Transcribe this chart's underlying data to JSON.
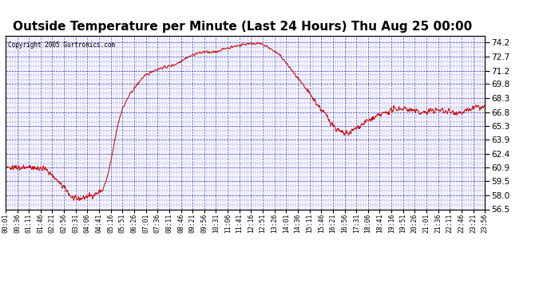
{
  "title": "Outside Temperature per Minute (Last 24 Hours) Thu Aug 25 00:00",
  "copyright": "Copyright 2005 Gurtronics.com",
  "ylabel_right_ticks": [
    74.2,
    72.7,
    71.2,
    69.8,
    68.3,
    66.8,
    65.3,
    63.9,
    62.4,
    60.9,
    59.5,
    58.0,
    56.5
  ],
  "ymin": 56.5,
  "ymax": 74.9,
  "line_color": "#cc0000",
  "background_color": "#ffffff",
  "plot_bg_color": "#ffffff",
  "grid_color": "#0000bb",
  "title_fontsize": 11,
  "title_fontweight": "bold",
  "x_tick_labels": [
    "00:01",
    "00:36",
    "01:11",
    "01:46",
    "02:21",
    "02:56",
    "03:31",
    "04:06",
    "04:41",
    "05:16",
    "05:51",
    "06:26",
    "07:01",
    "07:36",
    "08:11",
    "08:46",
    "09:21",
    "09:56",
    "10:31",
    "11:06",
    "11:41",
    "12:16",
    "12:51",
    "13:26",
    "14:01",
    "14:36",
    "15:11",
    "15:46",
    "16:21",
    "16:56",
    "17:31",
    "18:06",
    "18:41",
    "19:16",
    "19:51",
    "20:26",
    "21:01",
    "21:36",
    "22:11",
    "22:46",
    "23:21",
    "23:56"
  ],
  "temp_data": [
    60.9,
    60.8,
    61.0,
    60.7,
    61.1,
    60.9,
    61.3,
    61.0,
    60.8,
    61.2,
    61.0,
    60.7,
    61.3,
    61.1,
    60.9,
    61.2,
    60.8,
    61.0,
    61.2,
    60.9,
    60.7,
    61.1,
    60.8,
    61.0,
    60.9,
    61.1,
    60.7,
    61.0,
    60.8,
    61.2,
    60.9,
    60.7,
    61.1,
    60.8,
    61.0,
    61.2,
    60.8,
    61.0,
    60.9,
    60.7,
    61.1,
    60.9,
    60.7,
    61.0,
    60.8,
    61.1,
    60.9,
    60.7,
    61.0,
    60.8,
    60.6,
    60.9,
    60.7,
    61.0,
    60.8,
    60.6,
    60.9,
    60.7,
    60.5,
    60.7,
    60.5,
    60.3,
    60.5,
    60.3,
    60.1,
    60.3,
    60.1,
    59.9,
    60.0,
    59.8,
    59.6,
    59.8,
    59.6,
    59.4,
    59.5,
    59.3,
    59.2,
    59.0,
    59.2,
    59.0,
    58.8,
    59.0,
    58.8,
    58.6,
    58.7,
    58.5,
    58.3,
    58.5,
    58.3,
    58.1,
    58.0,
    57.9,
    57.8,
    57.8,
    57.7,
    57.6,
    57.6,
    57.5,
    57.5,
    57.6,
    57.5,
    57.6,
    57.7,
    57.6,
    57.7,
    57.6,
    57.7,
    57.6,
    57.8,
    57.7,
    57.8,
    57.7,
    57.8,
    57.9,
    57.8,
    57.9,
    57.8,
    57.9,
    58.0,
    57.9,
    58.0,
    57.9,
    58.0,
    58.1,
    58.0,
    58.1,
    58.2,
    58.1,
    58.2,
    58.3,
    58.2,
    58.4,
    58.3,
    58.5,
    58.4,
    58.6,
    58.5,
    58.7,
    58.9,
    59.1,
    59.3,
    59.5,
    59.8,
    60.1,
    60.4,
    60.7,
    61.1,
    61.4,
    61.8,
    62.2,
    62.6,
    63.0,
    63.4,
    63.8,
    64.2,
    64.6,
    65.0,
    65.4,
    65.7,
    66.0,
    66.3,
    66.6,
    66.8,
    67.0,
    67.2,
    67.4,
    67.5,
    67.6,
    67.8,
    68.0,
    68.1,
    68.3,
    68.4,
    68.5,
    68.7,
    68.8,
    68.9,
    69.0,
    69.1,
    69.2,
    69.3,
    69.4,
    69.5,
    69.6,
    69.7,
    69.8,
    69.9,
    70.0,
    70.1,
    70.2,
    70.3,
    70.4,
    70.5,
    70.5,
    70.6,
    70.6,
    70.7,
    70.7,
    70.8,
    70.8,
    70.9,
    70.9,
    71.0,
    71.0,
    71.1,
    71.1,
    71.2,
    71.2,
    71.2,
    71.3,
    71.3,
    71.3,
    71.3,
    71.4,
    71.4,
    71.4,
    71.4,
    71.5,
    71.5,
    71.5,
    71.5,
    71.5,
    71.6,
    71.6,
    71.6,
    71.6,
    71.6,
    71.6,
    71.7,
    71.7,
    71.7,
    71.7,
    71.7,
    71.8,
    71.8,
    71.8,
    71.8,
    71.9,
    71.9,
    71.9,
    72.0,
    72.0,
    72.1,
    72.1,
    72.2,
    72.2,
    72.3,
    72.3,
    72.4,
    72.4,
    72.4,
    72.5,
    72.5,
    72.6,
    72.6,
    72.6,
    72.7,
    72.7,
    72.7,
    72.8,
    72.8,
    72.8,
    72.9,
    72.9,
    72.9,
    73.0,
    73.0,
    73.0,
    73.0,
    73.1,
    73.1,
    73.1,
    73.1,
    73.1,
    73.1,
    73.1,
    73.2,
    73.2,
    73.2,
    73.2,
    73.2,
    73.2,
    73.2,
    73.2,
    73.2,
    73.1,
    73.1,
    73.1,
    73.1,
    73.1,
    73.1,
    73.2,
    73.2,
    73.2,
    73.2,
    73.2,
    73.3,
    73.3,
    73.3,
    73.3,
    73.4,
    73.4,
    73.4,
    73.4,
    73.5,
    73.5,
    73.5,
    73.5,
    73.6,
    73.6,
    73.6,
    73.6,
    73.6,
    73.6,
    73.7,
    73.7,
    73.7,
    73.7,
    73.7,
    73.8,
    73.8,
    73.8,
    73.8,
    73.8,
    73.8,
    73.9,
    73.9,
    73.9,
    73.9,
    73.9,
    73.9,
    74.0,
    74.0,
    74.0,
    74.0,
    74.0,
    74.0,
    74.0,
    74.1,
    74.1,
    74.1,
    74.1,
    74.1,
    74.1,
    74.1,
    74.1,
    74.1,
    74.1,
    74.1,
    74.1,
    74.1,
    74.1,
    74.1,
    74.1,
    74.1,
    74.1,
    74.0,
    74.0,
    74.0,
    74.0,
    74.0,
    73.9,
    73.9,
    73.9,
    73.8,
    73.8,
    73.8,
    73.7,
    73.7,
    73.6,
    73.6,
    73.5,
    73.5,
    73.4,
    73.4,
    73.3,
    73.3,
    73.2,
    73.2,
    73.1,
    73.1,
    73.0,
    72.9,
    72.9,
    72.8,
    72.8,
    72.7,
    72.6,
    72.5,
    72.4,
    72.3,
    72.2,
    72.1,
    72.0,
    71.9,
    71.8,
    71.7,
    71.6,
    71.5,
    71.4,
    71.3,
    71.2,
    71.1,
    71.0,
    70.9,
    70.8,
    70.7,
    70.6,
    70.5,
    70.4,
    70.3,
    70.2,
    70.1,
    70.0,
    69.9,
    69.8,
    69.7,
    69.6,
    69.5,
    69.4,
    69.3,
    69.2,
    69.1,
    69.0,
    68.9,
    68.8,
    68.7,
    68.6,
    68.5,
    68.4,
    68.3,
    68.2,
    68.1,
    68.0,
    67.9,
    67.8,
    67.7,
    67.6,
    67.5,
    67.4,
    67.3,
    67.2,
    67.1,
    67.0,
    66.9,
    66.8,
    66.7,
    66.6,
    66.5,
    66.4,
    66.3,
    66.2,
    66.1,
    66.0,
    65.9,
    65.8,
    65.7,
    65.6,
    65.5,
    65.4,
    65.3,
    65.2,
    65.1,
    65.0,
    64.9,
    64.9,
    64.8,
    64.8,
    64.7,
    64.7,
    64.6,
    64.6,
    64.5,
    64.5,
    64.5,
    64.5,
    64.5,
    64.5,
    64.5,
    64.5,
    64.6,
    64.6,
    64.6,
    64.7,
    64.7,
    64.8,
    64.8,
    64.9,
    64.9,
    65.0,
    65.0,
    65.1,
    65.2,
    65.2,
    65.3,
    65.3,
    65.4,
    65.4,
    65.5,
    65.5,
    65.6,
    65.6,
    65.7,
    65.7,
    65.8,
    65.8,
    65.8,
    65.9,
    65.9,
    65.9,
    66.0,
    66.0,
    66.0,
    66.1,
    66.1,
    66.1,
    66.2,
    66.2,
    66.2,
    66.3,
    66.3,
    66.4,
    66.4,
    66.4,
    66.5,
    66.5,
    66.5,
    66.6,
    66.6,
    66.6,
    66.7,
    66.7,
    66.7,
    66.8,
    66.8,
    66.8,
    66.9,
    66.9,
    66.9,
    67.0,
    67.0,
    67.0,
    67.0,
    67.1,
    67.1,
    67.1,
    67.1,
    67.1,
    67.2,
    67.2,
    67.2,
    67.2,
    67.2,
    67.2,
    67.2,
    67.2,
    67.2,
    67.2,
    67.2,
    67.2,
    67.2,
    67.2,
    67.1,
    67.1,
    67.1,
    67.1,
    67.1,
    67.0,
    67.0,
    67.0,
    67.0,
    67.0,
    66.9,
    66.9,
    66.9,
    66.9,
    66.8,
    66.8,
    66.8,
    66.8,
    66.8,
    66.8,
    66.8,
    66.8,
    66.8,
    66.8,
    66.8,
    66.8,
    66.8,
    66.8,
    66.8,
    66.8,
    66.9,
    66.9,
    66.9,
    66.9,
    66.9,
    67.0,
    67.0,
    67.0,
    67.0,
    67.0,
    67.0,
    67.0,
    67.0,
    67.0,
    67.0,
    67.0,
    67.0,
    67.0,
    67.0,
    67.0,
    67.0,
    67.0,
    66.9,
    66.9,
    66.9,
    66.9,
    66.9,
    66.9,
    66.9,
    66.9,
    66.9,
    66.8,
    66.8,
    66.8,
    66.8,
    66.8,
    66.8,
    66.8,
    66.8,
    66.8,
    66.8,
    66.8,
    66.8,
    66.8,
    66.8,
    66.8,
    66.8,
    66.8,
    66.8,
    66.8,
    66.8,
    66.9,
    66.9,
    66.9,
    66.9,
    67.0,
    67.0,
    67.0,
    67.1,
    67.1,
    67.1,
    67.2,
    67.2,
    67.2,
    67.2,
    67.3,
    67.3,
    67.3,
    67.3,
    67.3,
    67.3,
    67.3,
    67.3,
    67.3,
    67.3,
    67.3,
    67.3,
    67.3,
    67.3,
    67.3
  ]
}
